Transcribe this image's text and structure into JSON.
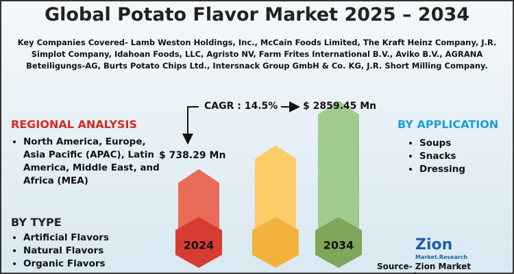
{
  "header": {
    "title": "Global Potato Flavor Market 2025 – 2034",
    "subtitle": "Key Companies Covered- Lamb Weston Holdings, Inc., McCain Foods Limited, The Kraft Heinz Company, J.R. Simplot Company, Idahoan Foods, LLC, Agristo NV, Farm Frites International B.V., Aviko B.V., AGRANA Beteiligungs-AG, Burts Potato Chips Ltd., Intersnack Group GmbH & Co. KG, J.R. Short Milling Company."
  },
  "regional": {
    "heading": "REGIONAL ANALYSIS",
    "items": [
      "North America, Europe, Asia Pacific (APAC), Latin America, Middle East, and Africa (MEA)"
    ]
  },
  "by_type": {
    "heading": "BY TYPE",
    "items": [
      "Artificial Flavors",
      "Natural Flavors",
      "Organic Flavors"
    ]
  },
  "by_application": {
    "heading": "BY APPLICATION",
    "items": [
      "Soups",
      "Snacks",
      "Dressing"
    ]
  },
  "growth": {
    "cagr": "CAGR : 14.5%",
    "start_value": "$ 738.29 Mn",
    "end_value": "$ 2859.45 Mn",
    "start_year": "2024",
    "end_year": "2034"
  },
  "logo": {
    "name": "Zion",
    "tagline": "Market.Research"
  },
  "source": "Source- Zion Market Research"
}
